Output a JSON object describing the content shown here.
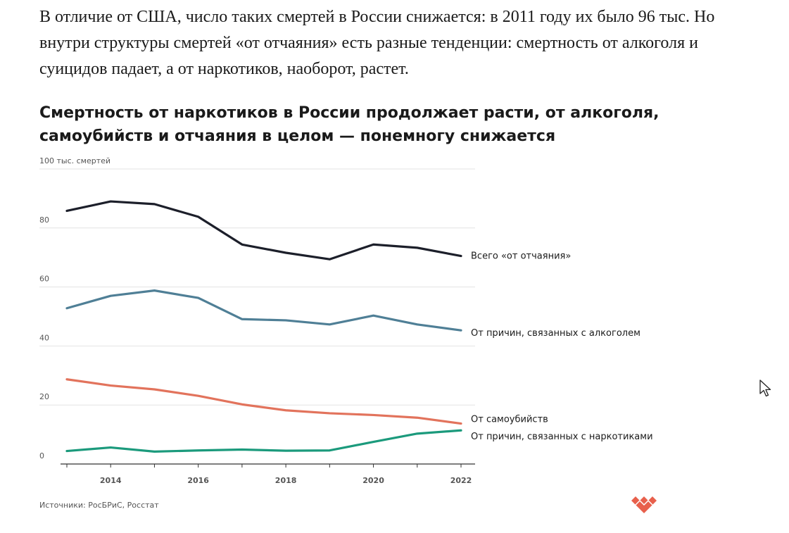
{
  "article": {
    "intro_text": "В отличие от США, число таких смертей в России снижается: в 2011 году их было 96 тыс. Но внутри структуры смертей «от отчаяния» есть разные тенденции: смертность от алкоголя и суицидов падает, а от наркотиков, наоборот, растет."
  },
  "chart_data": {
    "type": "line",
    "title": "Смертность от наркотиков в России продолжает расти, от алкоголя, самоубийств и отчаяния в целом — понемногу снижается",
    "xlabel": "",
    "ylabel": "тыс. смертей",
    "x": [
      2013,
      2014,
      2015,
      2016,
      2017,
      2018,
      2019,
      2020,
      2021,
      2022
    ],
    "xlim": [
      2013,
      2022
    ],
    "ylim": [
      0,
      100
    ],
    "y_ticks": [
      {
        "value": 0,
        "label": "0"
      },
      {
        "value": 20,
        "label": "20"
      },
      {
        "value": 40,
        "label": "40"
      },
      {
        "value": 60,
        "label": "60"
      },
      {
        "value": 80,
        "label": "80"
      },
      {
        "value": 100,
        "label": "100 тыс. смертей"
      }
    ],
    "x_ticks": [
      {
        "value": 2014,
        "label": "2014"
      },
      {
        "value": 2016,
        "label": "2016"
      },
      {
        "value": 2018,
        "label": "2018"
      },
      {
        "value": 2020,
        "label": "2020"
      },
      {
        "value": 2022,
        "label": "2022"
      }
    ],
    "grid": true,
    "legend": "direct labels at right end of lines",
    "series": [
      {
        "name": "Всего «от отчаяния»",
        "color": "#1c1f2a",
        "values": [
          85.8,
          89.0,
          88.1,
          83.8,
          74.4,
          71.6,
          69.4,
          74.4,
          73.3,
          70.5
        ]
      },
      {
        "name": "От причин, связанных с алкоголем",
        "color": "#4f7f96",
        "values": [
          52.8,
          57.0,
          58.8,
          56.3,
          49.1,
          48.7,
          47.3,
          50.3,
          47.3,
          45.3
        ]
      },
      {
        "name": "От самоубийств",
        "color": "#e2735c",
        "values": [
          28.7,
          26.6,
          25.3,
          23.1,
          20.2,
          18.2,
          17.2,
          16.6,
          15.7,
          13.7
        ]
      },
      {
        "name": "От причин, связанных с наркотиками",
        "color": "#1b9a7c",
        "values": [
          4.4,
          5.6,
          4.2,
          4.6,
          4.9,
          4.5,
          4.6,
          7.5,
          10.3,
          11.4
        ]
      }
    ]
  },
  "source": {
    "text": "Источники: РосБРиС, Росстат"
  },
  "brand": {
    "logo_icon": "hearts-logo-icon",
    "logo_color": "#e8604c"
  },
  "cursor": {
    "icon": "mouse-pointer-icon"
  }
}
